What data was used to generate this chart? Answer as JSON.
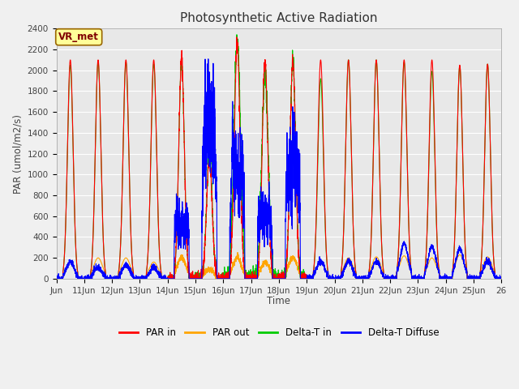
{
  "title": "Photosynthetic Active Radiation",
  "ylabel": "PAR (umol/m2/s)",
  "xlabel": "Time",
  "annotation": "VR_met",
  "ylim": [
    0,
    2400
  ],
  "yticks": [
    0,
    200,
    400,
    600,
    800,
    1000,
    1200,
    1400,
    1600,
    1800,
    2000,
    2200,
    2400
  ],
  "xtick_labels": [
    "Jun",
    "11Jun",
    "12Jun",
    "13Jun",
    "14Jun",
    "15Jun",
    "16Jun",
    "17Jun",
    "18Jun",
    "19Jun",
    "20Jun",
    "21Jun",
    "22Jun",
    "23Jun",
    "24Jun",
    "25Jun",
    "26"
  ],
  "legend_labels": [
    "PAR in",
    "PAR out",
    "Delta-T in",
    "Delta-T Diffuse"
  ],
  "legend_colors": [
    "#ff0000",
    "#ffa500",
    "#00cc00",
    "#0000ff"
  ],
  "line_colors": {
    "par_in": "#ff0000",
    "par_out": "#ffa500",
    "delta_t_in": "#00cc00",
    "delta_t_diffuse": "#0000ff"
  },
  "fig_bg": "#f0f0f0",
  "axes_bg": "#e8e8e8",
  "annotation_bg": "#ffff99",
  "annotation_border": "#996600",
  "annotation_text_color": "#800000",
  "grid_color": "#ffffff",
  "n_days": 16,
  "par_in_peaks": [
    2100,
    2100,
    2100,
    2100,
    2100,
    1160,
    2260,
    2100,
    2100,
    2100,
    2100,
    2100,
    2100,
    2100,
    2050,
    2060
  ],
  "par_out_peaks": [
    155,
    200,
    200,
    160,
    200,
    90,
    200,
    155,
    200,
    155,
    200,
    210,
    220,
    200,
    230,
    210
  ],
  "dtin_peaks": [
    2050,
    2080,
    2080,
    2060,
    2080,
    1220,
    2300,
    1960,
    2090,
    1920,
    2100,
    2100,
    2080,
    1990,
    2040,
    2060
  ],
  "dtdiff_base": [
    165,
    110,
    130,
    110,
    460,
    1080,
    840,
    490,
    810,
    170,
    170,
    170,
    340,
    310,
    285,
    170
  ],
  "cloudy_days": [
    4,
    5,
    6,
    7,
    8
  ],
  "pts_per_day": 288
}
